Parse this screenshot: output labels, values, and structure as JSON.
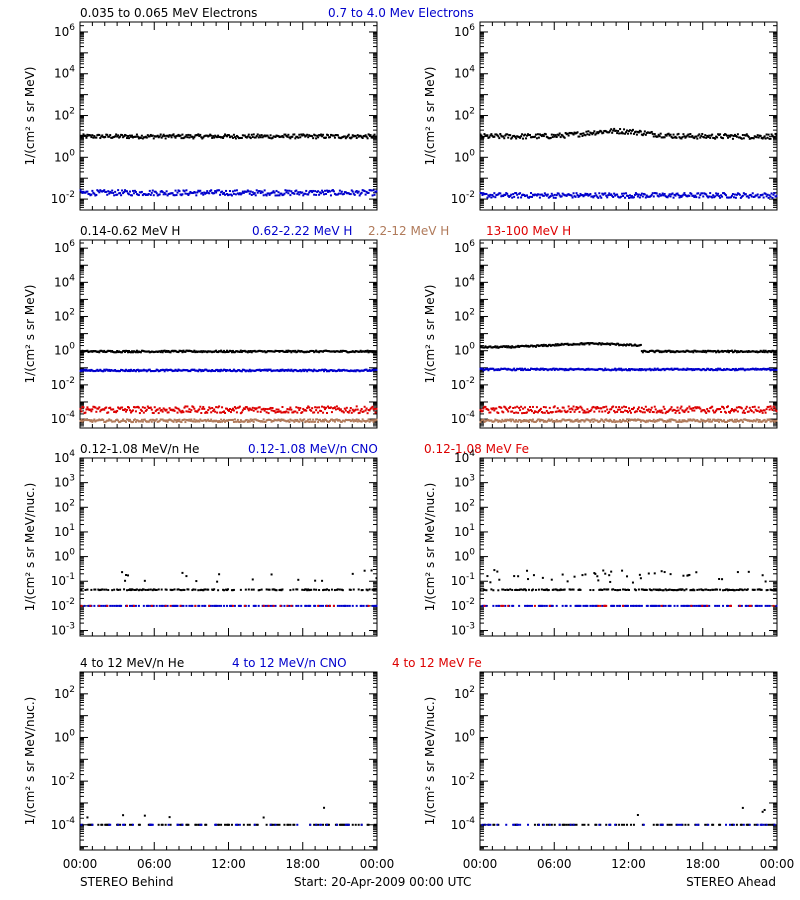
{
  "colors": {
    "black": "#000000",
    "blue": "#0000cc",
    "brown": "#b07a5a",
    "red": "#dd0000",
    "axis": "#000000"
  },
  "footer": {
    "left_label": "STEREO Behind",
    "center_label": "Start: 20-Apr-2009 00:00 UTC",
    "right_label": "STEREO Ahead"
  },
  "chart_data": [
    {
      "id": "electrons-behind",
      "type": "scatter",
      "title_items": [
        {
          "text": "0.035 to 0.065 MeV Electrons",
          "color": "black"
        },
        {
          "text": "0.7 to 4.0 Mev Electrons",
          "color": "blue"
        }
      ],
      "ylabel": "1/(cm² s sr MeV)",
      "yscale": "log",
      "ylim": [
        0.003,
        3000000
      ],
      "yticks": [
        {
          "v": 0.01,
          "b": "10",
          "e": "-2"
        },
        {
          "v": 1,
          "b": "10",
          "e": "0"
        },
        {
          "v": 100,
          "b": "10",
          "e": "2"
        },
        {
          "v": 10000,
          "b": "10",
          "e": "4"
        },
        {
          "v": 1000000,
          "b": "10",
          "e": "6"
        }
      ],
      "xlim_hours": [
        0,
        24
      ],
      "xticks": [],
      "series": [
        {
          "color": "black",
          "level": 10,
          "jitter": 0.1
        },
        {
          "color": "blue",
          "level": 0.02,
          "jitter": 0.13
        }
      ]
    },
    {
      "id": "electrons-ahead",
      "type": "scatter",
      "title_items": [],
      "ylabel": "1/(cm² s sr MeV)",
      "yscale": "log",
      "ylim": [
        0.003,
        3000000
      ],
      "yticks": [
        {
          "v": 0.01,
          "b": "10",
          "e": "-2"
        },
        {
          "v": 1,
          "b": "10",
          "e": "0"
        },
        {
          "v": 100,
          "b": "10",
          "e": "2"
        },
        {
          "v": 10000,
          "b": "10",
          "e": "4"
        },
        {
          "v": 1000000,
          "b": "10",
          "e": "6"
        }
      ],
      "xlim_hours": [
        0,
        24
      ],
      "xticks": [],
      "series": [
        {
          "color": "black",
          "level": 10,
          "jitter": 0.12,
          "bump": {
            "center": 11,
            "width": 3,
            "factor": 1.8
          }
        },
        {
          "color": "blue",
          "level": 0.015,
          "jitter": 0.12
        }
      ]
    },
    {
      "id": "protons-behind",
      "type": "scatter",
      "title_items": [
        {
          "text": "0.14-0.62 MeV H",
          "color": "black"
        },
        {
          "text": "0.62-2.22 MeV H",
          "color": "blue"
        },
        {
          "text": "2.2-12 MeV H",
          "color": "brown"
        },
        {
          "text": "13-100 MeV H",
          "color": "red"
        }
      ],
      "ylabel": "1/(cm² s sr MeV)",
      "yscale": "log",
      "ylim": [
        3e-05,
        3000000
      ],
      "yticks": [
        {
          "v": 0.0001,
          "b": "10",
          "e": "-4"
        },
        {
          "v": 0.01,
          "b": "10",
          "e": "-2"
        },
        {
          "v": 1,
          "b": "10",
          "e": "0"
        },
        {
          "v": 100,
          "b": "10",
          "e": "2"
        },
        {
          "v": 10000,
          "b": "10",
          "e": "4"
        },
        {
          "v": 1000000,
          "b": "10",
          "e": "6"
        }
      ],
      "xlim_hours": [
        0,
        24
      ],
      "xticks": [],
      "series": [
        {
          "color": "black",
          "level": 0.9,
          "jitter": 0.05
        },
        {
          "color": "blue",
          "level": 0.07,
          "jitter": 0.05
        },
        {
          "color": "red",
          "level": 0.00035,
          "jitter": 0.2
        },
        {
          "color": "brown",
          "level": 8e-05,
          "jitter": 0.08
        }
      ]
    },
    {
      "id": "protons-ahead",
      "type": "scatter",
      "title_items": [],
      "ylabel": "1/(cm² s sr MeV)",
      "yscale": "log",
      "ylim": [
        3e-05,
        3000000
      ],
      "yticks": [
        {
          "v": 0.0001,
          "b": "10",
          "e": "-4"
        },
        {
          "v": 0.01,
          "b": "10",
          "e": "-2"
        },
        {
          "v": 1,
          "b": "10",
          "e": "0"
        },
        {
          "v": 100,
          "b": "10",
          "e": "2"
        },
        {
          "v": 10000,
          "b": "10",
          "e": "4"
        },
        {
          "v": 1000000,
          "b": "10",
          "e": "6"
        }
      ],
      "xlim_hours": [
        0,
        24
      ],
      "xticks": [],
      "series": [
        {
          "color": "black",
          "level": 1.6,
          "jitter": 0.05,
          "bump": {
            "center": 9,
            "width": 4,
            "factor": 1.6
          },
          "drop_after": 13,
          "drop_level": 0.9
        },
        {
          "color": "blue",
          "level": 0.08,
          "jitter": 0.05
        },
        {
          "color": "red",
          "level": 0.00035,
          "jitter": 0.2
        },
        {
          "color": "brown",
          "level": 8e-05,
          "jitter": 0.08
        }
      ]
    },
    {
      "id": "heavy-low-behind",
      "type": "scatter",
      "title_items": [
        {
          "text": "0.12-1.08 MeV/n He",
          "color": "black"
        },
        {
          "text": "0.12-1.08 MeV/n CNO",
          "color": "blue"
        },
        {
          "text": "0.12-1.08 MeV Fe",
          "color": "red"
        }
      ],
      "ylabel": "1/(cm² s sr MeV/nuc.)",
      "yscale": "log",
      "ylim": [
        0.0006,
        10000
      ],
      "yticks": [
        {
          "v": 0.001,
          "b": "10",
          "e": "-3"
        },
        {
          "v": 0.01,
          "b": "10",
          "e": "-2"
        },
        {
          "v": 0.1,
          "b": "10",
          "e": "-1"
        },
        {
          "v": 1,
          "b": "10",
          "e": "0"
        },
        {
          "v": 10,
          "b": "10",
          "e": "1"
        },
        {
          "v": 100,
          "b": "10",
          "e": "2"
        },
        {
          "v": 1000,
          "b": "10",
          "e": "3"
        },
        {
          "v": 10000,
          "b": "10",
          "e": "4"
        }
      ],
      "xlim_hours": [
        0,
        24
      ],
      "xticks": [],
      "series": [
        {
          "color": "black",
          "level": 0.045,
          "jitter": 0.02,
          "sparse": 0.55,
          "spikes": 0.12
        },
        {
          "color": "blue",
          "level": 0.01,
          "jitter": 0.0,
          "sparse": 0.45
        },
        {
          "color": "red",
          "level": 0.01,
          "jitter": 0.0,
          "sparse": 0.08
        }
      ]
    },
    {
      "id": "heavy-low-ahead",
      "type": "scatter",
      "title_items": [],
      "ylabel": "1/(cm² s sr MeV/nuc.)",
      "yscale": "log",
      "ylim": [
        0.0006,
        10000
      ],
      "yticks": [
        {
          "v": 0.001,
          "b": "10",
          "e": "-3"
        },
        {
          "v": 0.01,
          "b": "10",
          "e": "-2"
        },
        {
          "v": 0.1,
          "b": "10",
          "e": "-1"
        },
        {
          "v": 1,
          "b": "10",
          "e": "0"
        },
        {
          "v": 10,
          "b": "10",
          "e": "1"
        },
        {
          "v": 100,
          "b": "10",
          "e": "2"
        },
        {
          "v": 1000,
          "b": "10",
          "e": "3"
        },
        {
          "v": 10000,
          "b": "10",
          "e": "4"
        }
      ],
      "xlim_hours": [
        0,
        24
      ],
      "xticks": [],
      "series": [
        {
          "color": "black",
          "level": 0.045,
          "jitter": 0.02,
          "sparse": 0.7,
          "spikes": 0.18
        },
        {
          "color": "blue",
          "level": 0.01,
          "jitter": 0.0,
          "sparse": 0.45
        },
        {
          "color": "red",
          "level": 0.01,
          "jitter": 0.0,
          "sparse": 0.08
        }
      ]
    },
    {
      "id": "heavy-high-behind",
      "type": "scatter",
      "title_items": [
        {
          "text": "4 to 12 MeV/n He",
          "color": "black"
        },
        {
          "text": "4 to 12 MeV/n CNO",
          "color": "blue"
        },
        {
          "text": "4 to 12 MeV Fe",
          "color": "red"
        }
      ],
      "ylabel": "1/(cm² s sr MeV/nuc.)",
      "yscale": "log",
      "ylim": [
        7e-06,
        1000
      ],
      "yticks": [
        {
          "v": 0.0001,
          "b": "10",
          "e": "-4"
        },
        {
          "v": 0.01,
          "b": "10",
          "e": "-2"
        },
        {
          "v": 1,
          "b": "10",
          "e": "0"
        },
        {
          "v": 100,
          "b": "10",
          "e": "2"
        }
      ],
      "xlim_hours": [
        0,
        24
      ],
      "xticks": [
        "00:00",
        "06:00",
        "12:00",
        "18:00",
        "00:00"
      ],
      "series": [
        {
          "color": "black",
          "level": 0.0001,
          "jitter": 0.0,
          "sparse": 0.3,
          "spikes": 0.05
        },
        {
          "color": "blue",
          "level": 0.0001,
          "jitter": 0.0,
          "sparse": 0.15
        }
      ]
    },
    {
      "id": "heavy-high-ahead",
      "type": "scatter",
      "title_items": [],
      "ylabel": "1/(cm² s sr MeV/nuc.)",
      "yscale": "log",
      "ylim": [
        7e-06,
        1000
      ],
      "yticks": [
        {
          "v": 0.0001,
          "b": "10",
          "e": "-4"
        },
        {
          "v": 0.01,
          "b": "10",
          "e": "-2"
        },
        {
          "v": 1,
          "b": "10",
          "e": "0"
        },
        {
          "v": 100,
          "b": "10",
          "e": "2"
        }
      ],
      "xlim_hours": [
        0,
        24
      ],
      "xticks": [
        "00:00",
        "06:00",
        "12:00",
        "18:00",
        "00:00"
      ],
      "series": [
        {
          "color": "black",
          "level": 0.0001,
          "jitter": 0.0,
          "sparse": 0.3,
          "spikes": 0.05
        },
        {
          "color": "blue",
          "level": 0.0001,
          "jitter": 0.0,
          "sparse": 0.15
        }
      ]
    }
  ]
}
